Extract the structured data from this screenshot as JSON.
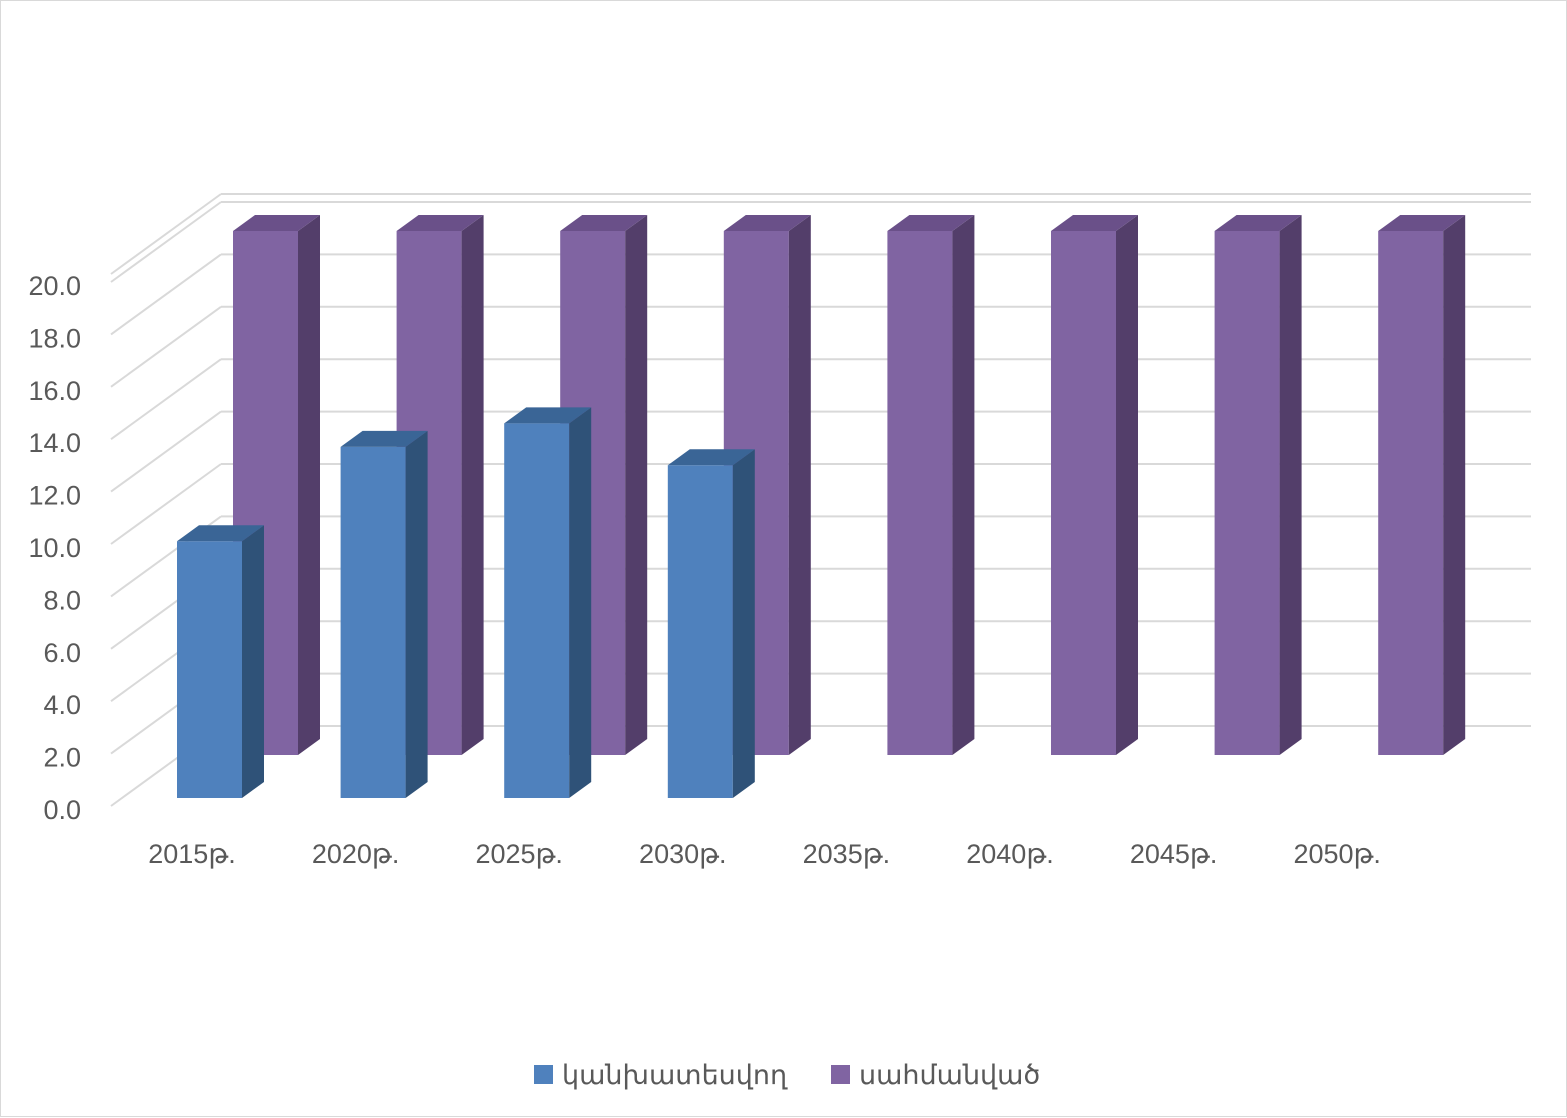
{
  "chart_data": {
    "type": "bar",
    "style": "3d-clustered-column",
    "categories": [
      "2015թ.",
      "2020թ.",
      "2025թ.",
      "2030թ.",
      "2035թ.",
      "2040թ.",
      "2045թ.",
      "2050թ."
    ],
    "series": [
      {
        "name": "կանխատեսվող",
        "color": "#4f81bd",
        "side_color": "#2f5278",
        "top_color": "#3a6596",
        "values": [
          9.8,
          13.4,
          14.3,
          12.7,
          null,
          null,
          null,
          null
        ]
      },
      {
        "name": "սահմանված",
        "color": "#8064a2",
        "side_color": "#533e6a",
        "top_color": "#6a5089",
        "values": [
          20,
          20,
          20,
          20,
          20,
          20,
          20,
          20
        ]
      }
    ],
    "y_ticks": [
      "0.0",
      "2.0",
      "4.0",
      "6.0",
      "8.0",
      "10.0",
      "12.0",
      "14.0",
      "16.0",
      "18.0",
      "20.0"
    ],
    "ylim": [
      0,
      20
    ],
    "grid": true,
    "legend_position": "bottom",
    "title": "",
    "xlabel": "",
    "ylabel": ""
  }
}
